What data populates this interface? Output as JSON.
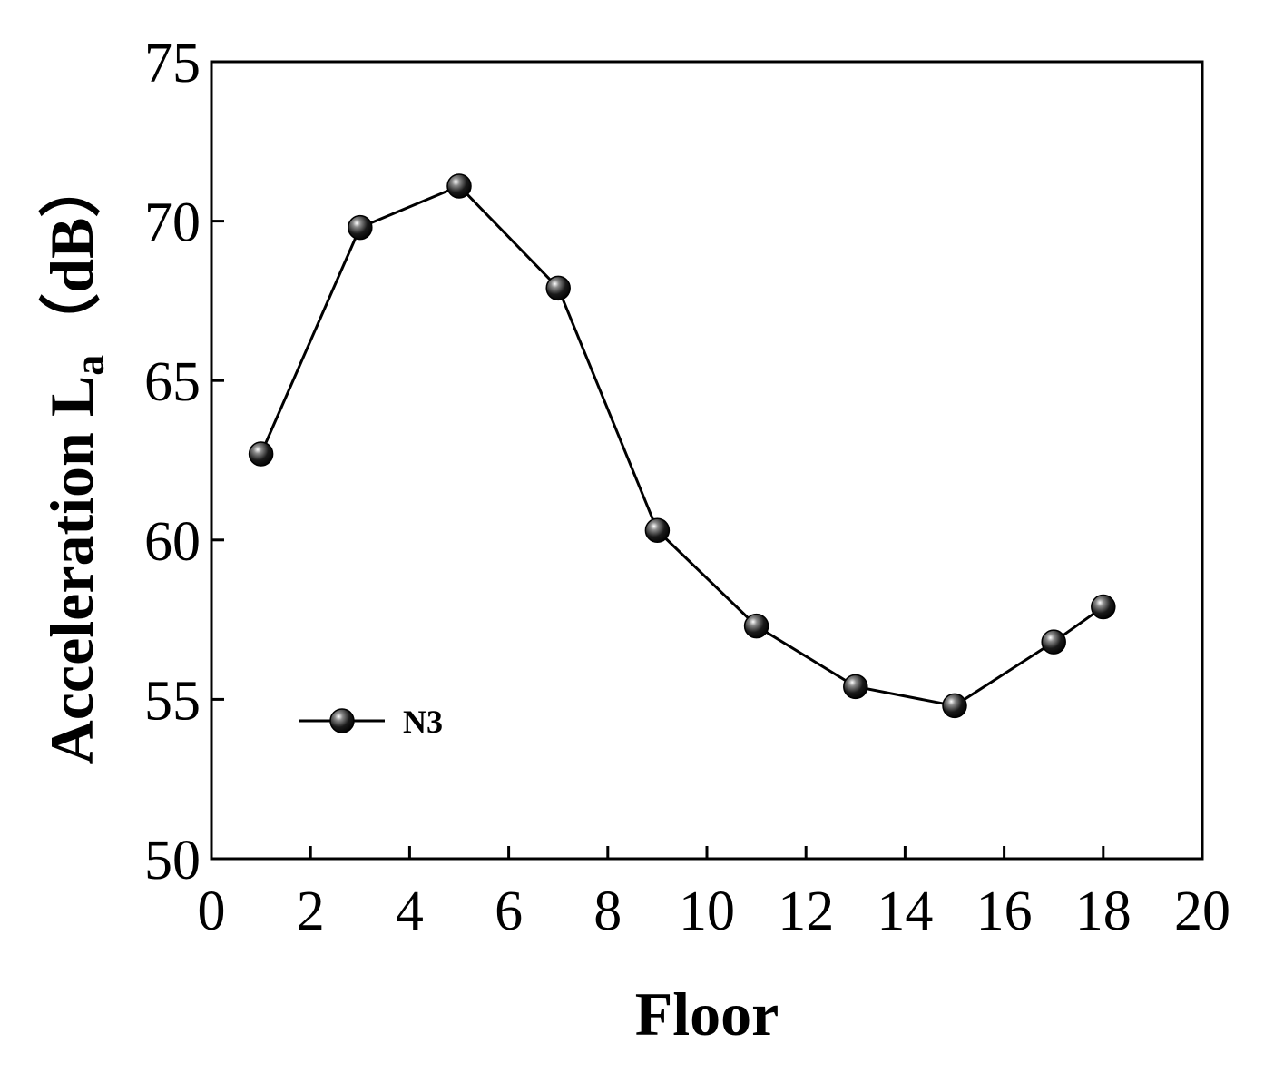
{
  "chart_data": {
    "type": "line",
    "xlabel": "Floor",
    "ylabel_main": "Acceleration L",
    "ylabel_sub": "a",
    "ylabel_unit": "（dB）",
    "xlim": [
      0,
      20
    ],
    "ylim": [
      50,
      75
    ],
    "xticks": [
      0,
      2,
      4,
      6,
      8,
      10,
      12,
      14,
      16,
      18,
      20
    ],
    "yticks": [
      50,
      55,
      60,
      65,
      70,
      75
    ],
    "grid": false,
    "legend_position": "lower-left",
    "series": [
      {
        "name": "N3",
        "color": "#000000",
        "marker": "sphere",
        "x": [
          1,
          3,
          5,
          7,
          9,
          11,
          13,
          15,
          17,
          18
        ],
        "y": [
          62.7,
          69.8,
          71.1,
          67.9,
          60.3,
          57.3,
          55.4,
          54.8,
          56.8,
          57.9
        ]
      }
    ]
  }
}
